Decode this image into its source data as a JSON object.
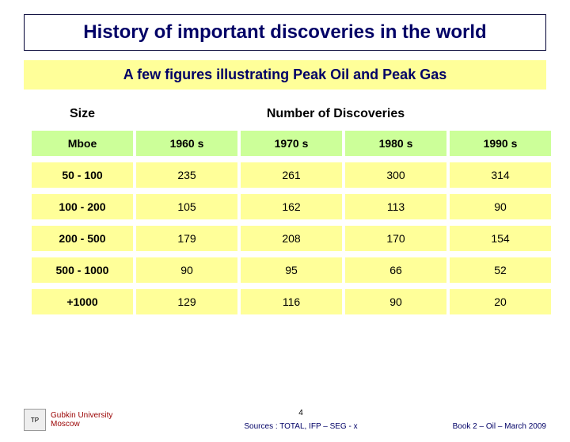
{
  "title": "History of important discoveries in the world",
  "subtitle": "A few figures illustrating Peak Oil and Peak Gas",
  "headers": {
    "size": "Size",
    "number": "Number of Discoveries"
  },
  "subheaders": [
    "Mboe",
    "1960 s",
    "1970 s",
    "1980 s",
    "1990 s"
  ],
  "rows": [
    [
      "50 - 100",
      "235",
      "261",
      "300",
      "314"
    ],
    [
      "100 - 200",
      "105",
      "162",
      "113",
      "90"
    ],
    [
      "200 - 500",
      "179",
      "208",
      "170",
      "154"
    ],
    [
      "500 - 1000",
      "90",
      "95",
      "66",
      "52"
    ],
    [
      "+1000",
      "129",
      "116",
      "90",
      "20"
    ]
  ],
  "colors": {
    "title_text": "#000066",
    "subtitle_bg": "#ffff99",
    "subheader_bg": "#ccff99",
    "data_bg": "#ffff99",
    "uni_text": "#990000"
  },
  "footer": {
    "university_line1": "Gubkin University",
    "university_line2": "Moscow",
    "page_number": "4",
    "sources": "Sources : TOTAL, IFP – SEG - x",
    "book_ref": "Book 2 – Oil – March 2009"
  }
}
